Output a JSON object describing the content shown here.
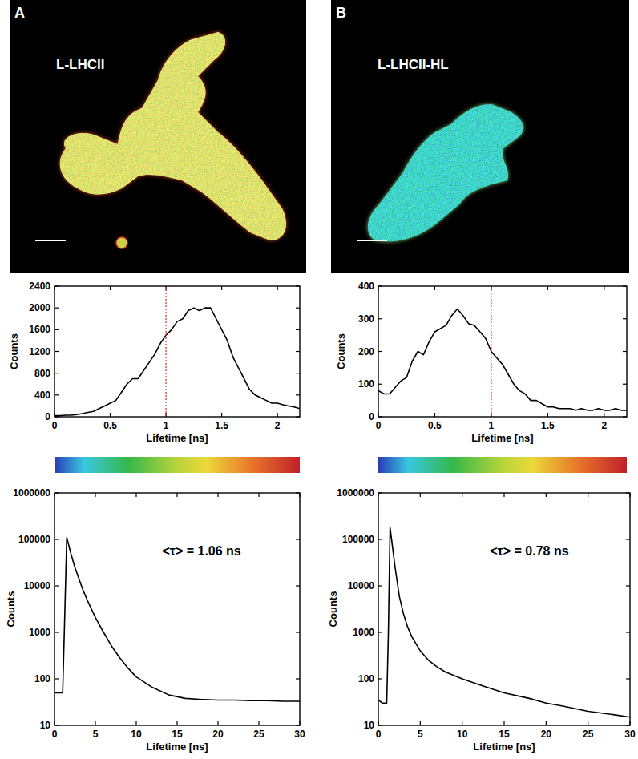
{
  "panels": [
    {
      "label": "A",
      "image_label": "L-LHCII"
    },
    {
      "label": "B",
      "image_label": "L-LHCII-HL"
    }
  ],
  "chart_data": [
    {
      "type": "line",
      "color": "#000000",
      "grid": false,
      "threshold": 1,
      "xlabel": "Lifetime [ns]",
      "ylabel": "Counts",
      "x": [
        0,
        0.05,
        0.1,
        0.15,
        0.2,
        0.25,
        0.3,
        0.35,
        0.4,
        0.45,
        0.5,
        0.55,
        0.6,
        0.65,
        0.7,
        0.75,
        0.8,
        0.85,
        0.9,
        0.95,
        1,
        1.05,
        1.1,
        1.15,
        1.2,
        1.25,
        1.3,
        1.35,
        1.4,
        1.45,
        1.5,
        1.55,
        1.6,
        1.65,
        1.7,
        1.75,
        1.8,
        1.85,
        1.9,
        1.95,
        2,
        2.05,
        2.1,
        2.15,
        2.2
      ],
      "values": [
        20,
        20,
        30,
        30,
        40,
        60,
        80,
        100,
        150,
        200,
        250,
        300,
        450,
        600,
        700,
        700,
        850,
        1000,
        1150,
        1350,
        1500,
        1600,
        1750,
        1800,
        1950,
        2000,
        1950,
        2000,
        2000,
        1800,
        1600,
        1400,
        1100,
        900,
        700,
        500,
        400,
        350,
        300,
        250,
        250,
        220,
        200,
        180,
        150
      ],
      "xlim": [
        0,
        2.2
      ],
      "xticks": [
        0,
        0.5,
        1,
        1.5,
        2
      ],
      "ylim": [
        0,
        2400
      ],
      "yticks": [
        0,
        400,
        800,
        1200,
        1600,
        2000,
        2400
      ]
    },
    {
      "type": "line",
      "color": "#000000",
      "grid": false,
      "threshold": 1,
      "xlabel": "Lifetime [ns]",
      "ylabel": "Counts",
      "x": [
        0,
        0.05,
        0.1,
        0.15,
        0.2,
        0.25,
        0.3,
        0.35,
        0.4,
        0.45,
        0.5,
        0.55,
        0.6,
        0.65,
        0.7,
        0.75,
        0.8,
        0.85,
        0.9,
        0.95,
        1,
        1.05,
        1.1,
        1.15,
        1.2,
        1.25,
        1.3,
        1.35,
        1.4,
        1.45,
        1.5,
        1.55,
        1.6,
        1.65,
        1.7,
        1.75,
        1.8,
        1.85,
        1.9,
        1.95,
        2,
        2.05,
        2.1,
        2.15,
        2.2
      ],
      "values": [
        80,
        70,
        70,
        90,
        110,
        120,
        170,
        200,
        190,
        230,
        260,
        270,
        280,
        310,
        330,
        310,
        285,
        280,
        260,
        240,
        200,
        180,
        160,
        130,
        100,
        80,
        70,
        50,
        50,
        40,
        30,
        30,
        25,
        25,
        25,
        20,
        25,
        20,
        20,
        25,
        20,
        20,
        25,
        20,
        20
      ],
      "xlim": [
        0,
        2.2
      ],
      "xticks": [
        0,
        0.5,
        1,
        1.5,
        2
      ],
      "ylim": [
        0,
        400
      ],
      "yticks": [
        0,
        100,
        200,
        300,
        400
      ]
    },
    {
      "type": "line",
      "color": "#000000",
      "grid": false,
      "log": "y",
      "xlabel": "Lifetime [ns]",
      "ylabel": "Counts",
      "annotation": "<τ> = 1.06 ns",
      "x": [
        0,
        0.5,
        1,
        1.2,
        1.5,
        2,
        2.5,
        3,
        3.5,
        4,
        4.5,
        5,
        6,
        7,
        8,
        9,
        10,
        12,
        14,
        16,
        18,
        20,
        22,
        24,
        26,
        28,
        30
      ],
      "values": [
        50,
        50,
        50,
        1000,
        110000,
        50000,
        25000,
        14000,
        8000,
        5000,
        3200,
        2100,
        1000,
        500,
        280,
        170,
        110,
        65,
        45,
        38,
        36,
        35,
        35,
        34,
        34,
        33,
        33
      ],
      "xlim": [
        0,
        30
      ],
      "xticks": [
        0,
        5,
        10,
        15,
        20,
        25,
        30
      ],
      "ylim": [
        10,
        1000000
      ],
      "yticks": [
        10,
        100,
        1000,
        10000,
        100000,
        1000000
      ]
    },
    {
      "type": "line",
      "color": "#000000",
      "grid": false,
      "log": "y",
      "xlabel": "Lifetime [ns]",
      "ylabel": "Counts",
      "annotation": "<τ> = 0.78 ns",
      "x": [
        0,
        0.5,
        1,
        1.2,
        1.4,
        2,
        2.5,
        3,
        3.5,
        4,
        5,
        6,
        7,
        8,
        10,
        12,
        15,
        18,
        20,
        22,
        25,
        28,
        30
      ],
      "values": [
        35,
        30,
        30,
        1000,
        180000,
        25000,
        6000,
        2500,
        1300,
        800,
        400,
        250,
        180,
        140,
        100,
        75,
        50,
        38,
        30,
        26,
        20,
        17,
        15
      ],
      "xlim": [
        0,
        30
      ],
      "xticks": [
        0,
        5,
        10,
        15,
        20,
        25,
        30
      ],
      "ylim": [
        10,
        1000000
      ],
      "yticks": [
        10,
        100,
        1000,
        10000,
        100000,
        1000000
      ]
    }
  ]
}
